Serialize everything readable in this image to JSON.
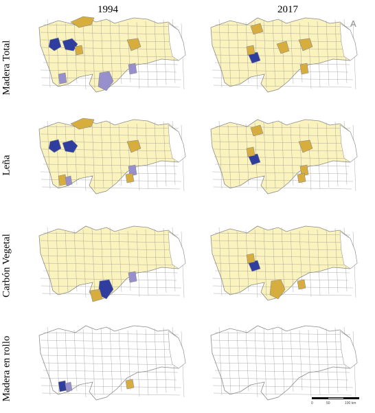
{
  "columns": [
    "1994",
    "2017"
  ],
  "rows": [
    "Madera Total",
    "Leña",
    "Carbón Vegetal",
    "Madera en rollo"
  ],
  "north_arrow": "A",
  "scale_bar": {
    "labels": [
      "0",
      "50",
      "100 km"
    ]
  },
  "colors": {
    "outline": "#8a8a8a",
    "none": "#ffffff",
    "low": "#fbf3bd",
    "medium": "#d7ad3e",
    "high_medium": "#9790cc",
    "high": "#2f3e9e"
  },
  "panels": [
    {
      "row": "Madera Total",
      "column": "1994",
      "base": "low",
      "highlights": [
        {
          "class": "high",
          "area": "west-north"
        },
        {
          "class": "high",
          "area": "west-north-2"
        },
        {
          "class": "medium",
          "area": "far-north"
        },
        {
          "class": "medium",
          "area": "west-center"
        },
        {
          "class": "high_medium",
          "area": "west-south"
        },
        {
          "class": "high_medium",
          "area": "south-center"
        },
        {
          "class": "high_medium",
          "area": "east-center"
        },
        {
          "class": "medium",
          "area": "east-north"
        }
      ]
    },
    {
      "row": "Madera Total",
      "column": "2017",
      "base": "low",
      "highlights": [
        {
          "class": "high",
          "area": "center"
        },
        {
          "class": "medium",
          "area": "west-center"
        },
        {
          "class": "medium",
          "area": "center-north"
        },
        {
          "class": "medium",
          "area": "east-north"
        },
        {
          "class": "medium",
          "area": "east-center"
        },
        {
          "class": "medium",
          "area": "north"
        }
      ]
    },
    {
      "row": "Leña",
      "column": "1994",
      "base": "low",
      "highlights": [
        {
          "class": "high",
          "area": "west-north"
        },
        {
          "class": "high",
          "area": "west-north-2"
        },
        {
          "class": "medium",
          "area": "far-north"
        },
        {
          "class": "medium",
          "area": "west-south"
        },
        {
          "class": "high_medium",
          "area": "west-south-2"
        },
        {
          "class": "medium",
          "area": "east-north"
        },
        {
          "class": "high_medium",
          "area": "east-center"
        },
        {
          "class": "medium",
          "area": "east-south"
        }
      ]
    },
    {
      "row": "Leña",
      "column": "2017",
      "base": "low",
      "highlights": [
        {
          "class": "high",
          "area": "center"
        },
        {
          "class": "medium",
          "area": "west-center"
        },
        {
          "class": "medium",
          "area": "north"
        },
        {
          "class": "medium",
          "area": "east-north"
        },
        {
          "class": "medium",
          "area": "east-center"
        },
        {
          "class": "medium",
          "area": "east-south"
        }
      ]
    },
    {
      "row": "Carbón Vegetal",
      "column": "1994",
      "base": "low",
      "highlights": [
        {
          "class": "high",
          "area": "south-center"
        },
        {
          "class": "medium",
          "area": "south-center-2"
        },
        {
          "class": "high_medium",
          "area": "east-center"
        }
      ]
    },
    {
      "row": "Carbón Vegetal",
      "column": "2017",
      "base": "low",
      "highlights": [
        {
          "class": "high",
          "area": "center"
        },
        {
          "class": "medium",
          "area": "west-center"
        },
        {
          "class": "medium",
          "area": "south-center"
        },
        {
          "class": "medium",
          "area": "east-south"
        }
      ]
    },
    {
      "row": "Madera en rollo",
      "column": "1994",
      "base": "none",
      "highlights": [
        {
          "class": "high",
          "area": "west-south"
        },
        {
          "class": "high_medium",
          "area": "west-south-2"
        },
        {
          "class": "medium",
          "area": "east-south"
        }
      ]
    },
    {
      "row": "Madera en rollo",
      "column": "2017",
      "base": "none",
      "highlights": []
    }
  ]
}
